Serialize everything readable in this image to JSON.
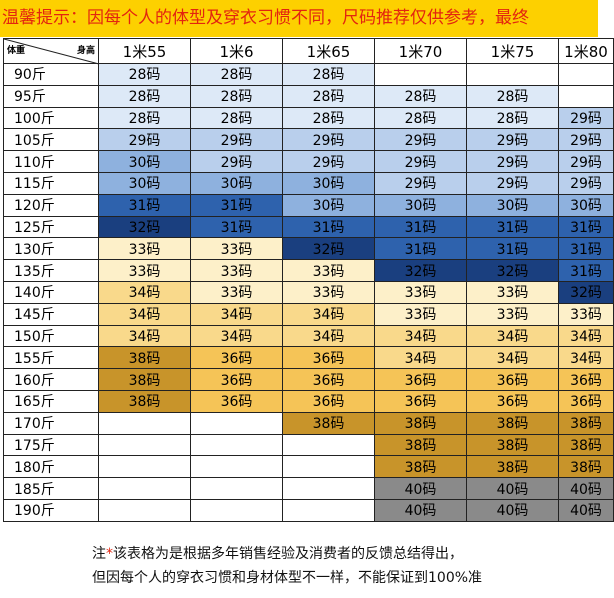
{
  "banner": "温馨提示：因每个人的体型及穿衣习惯不同，尺码推荐仅供参考，最终",
  "table": {
    "corner_left": "体重",
    "corner_right": "身高",
    "heights": [
      "1米55",
      "1米6",
      "1米65",
      "1米70",
      "1米75",
      "1米80"
    ],
    "rows": [
      {
        "weight": "90斤",
        "cells": [
          "28码",
          "28码",
          "28码",
          "",
          "",
          ""
        ]
      },
      {
        "weight": "95斤",
        "cells": [
          "28码",
          "28码",
          "28码",
          "28码",
          "28码",
          ""
        ]
      },
      {
        "weight": "100斤",
        "cells": [
          "28码",
          "28码",
          "28码",
          "28码",
          "28码",
          "29码"
        ]
      },
      {
        "weight": "105斤",
        "cells": [
          "29码",
          "29码",
          "29码",
          "29码",
          "29码",
          "29码"
        ]
      },
      {
        "weight": "110斤",
        "cells": [
          "30码",
          "29码",
          "29码",
          "29码",
          "29码",
          "29码"
        ]
      },
      {
        "weight": "115斤",
        "cells": [
          "30码",
          "30码",
          "30码",
          "29码",
          "29码",
          "29码"
        ]
      },
      {
        "weight": "120斤",
        "cells": [
          "31码",
          "31码",
          "30码",
          "30码",
          "30码",
          "30码"
        ]
      },
      {
        "weight": "125斤",
        "cells": [
          "32码",
          "31码",
          "31码",
          "31码",
          "31码",
          "31码"
        ]
      },
      {
        "weight": "130斤",
        "cells": [
          "33码",
          "33码",
          "32码",
          "31码",
          "31码",
          "31码"
        ]
      },
      {
        "weight": "135斤",
        "cells": [
          "33码",
          "33码",
          "33码",
          "32码",
          "32码",
          "31码"
        ]
      },
      {
        "weight": "140斤",
        "cells": [
          "34码",
          "33码",
          "33码",
          "33码",
          "33码",
          "32码"
        ]
      },
      {
        "weight": "145斤",
        "cells": [
          "34码",
          "34码",
          "34码",
          "33码",
          "33码",
          "33码"
        ]
      },
      {
        "weight": "150斤",
        "cells": [
          "34码",
          "34码",
          "34码",
          "34码",
          "34码",
          "34码"
        ]
      },
      {
        "weight": "155斤",
        "cells": [
          "38码",
          "36码",
          "36码",
          "34码",
          "34码",
          "34码"
        ]
      },
      {
        "weight": "160斤",
        "cells": [
          "38码",
          "36码",
          "36码",
          "36码",
          "36码",
          "36码"
        ]
      },
      {
        "weight": "165斤",
        "cells": [
          "38码",
          "36码",
          "36码",
          "36码",
          "36码",
          "36码"
        ]
      },
      {
        "weight": "170斤",
        "cells": [
          "",
          "",
          "38码",
          "38码",
          "38码",
          "38码"
        ]
      },
      {
        "weight": "175斤",
        "cells": [
          "",
          "",
          "",
          "38码",
          "38码",
          "38码"
        ]
      },
      {
        "weight": "180斤",
        "cells": [
          "",
          "",
          "",
          "38码",
          "38码",
          "38码"
        ]
      },
      {
        "weight": "185斤",
        "cells": [
          "",
          "",
          "",
          "40码",
          "40码",
          "40码"
        ]
      },
      {
        "weight": "190斤",
        "cells": [
          "",
          "",
          "",
          "40码",
          "40码",
          "40码"
        ]
      }
    ],
    "size_colors": {
      "28": "#dde9f7",
      "29": "#b9cfec",
      "30": "#8eb1de",
      "31": "#2e62ad",
      "32": "#1a3f7f",
      "33": "#fdf0c9",
      "34": "#f9d98b",
      "36": "#f5c457",
      "38": "#c8942a",
      "40": "#8a8a8a"
    },
    "colors": {
      "banner_bg": "#fdd000",
      "banner_text": "#e3240f",
      "grid": "#222222"
    }
  },
  "footnote": {
    "prefix": "注",
    "star": "*",
    "line1": "该表格为是根据多年销售经验及消费者的反馈总结得出，",
    "line2": "但因每个人的穿衣习惯和身材体型不一样，不能保证到100%准"
  }
}
